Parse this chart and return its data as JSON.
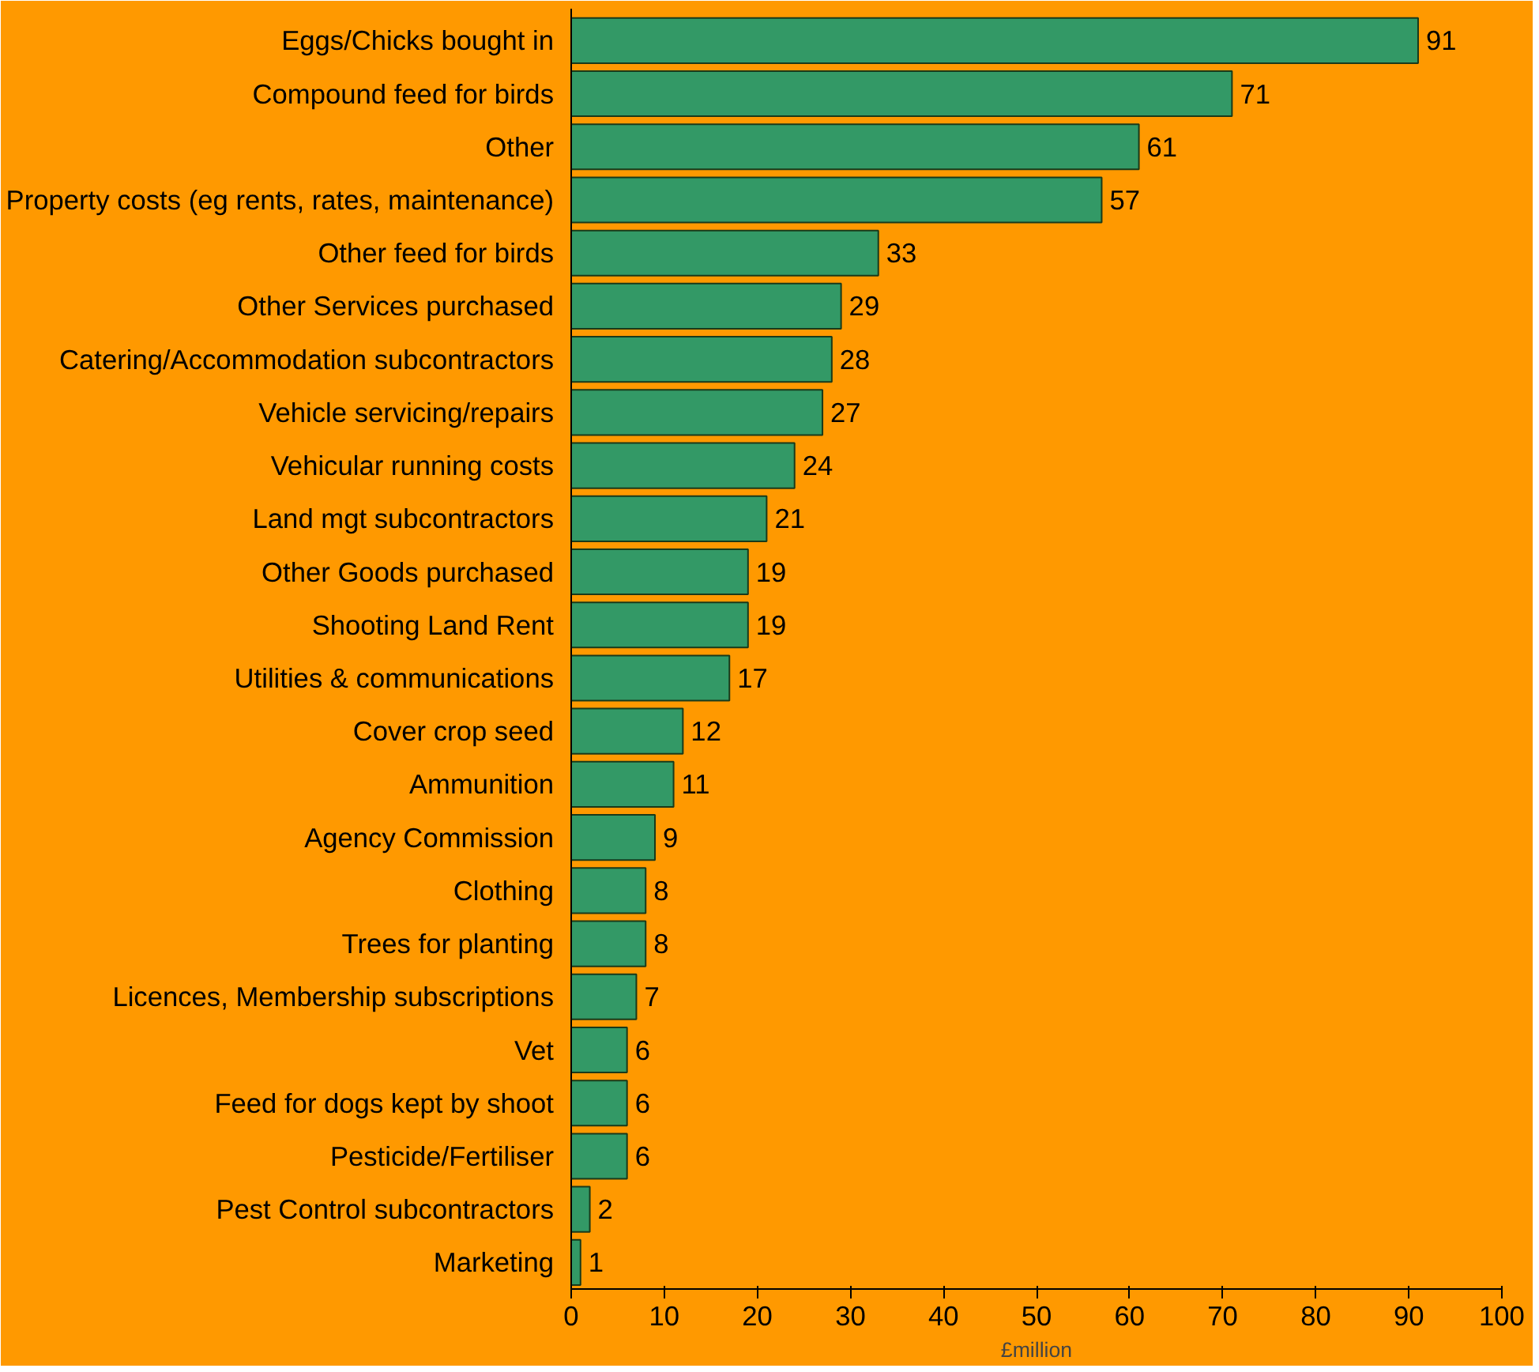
{
  "chart_data": {
    "type": "bar",
    "orientation": "horizontal",
    "xlabel": "£million",
    "categories": [
      "Eggs/Chicks bought in",
      "Compound feed for birds",
      "Other",
      "Property costs (eg rents, rates, maintenance)",
      "Other feed for birds",
      "Other Services purchased",
      "Catering/Accommodation subcontractors",
      "Vehicle servicing/repairs",
      "Vehicular running costs",
      "Land mgt subcontractors",
      "Other Goods purchased",
      "Shooting Land Rent",
      "Utilities & communications",
      "Cover crop seed",
      "Ammunition",
      "Agency Commission",
      "Clothing",
      "Trees for planting",
      "Licences, Membership subscriptions",
      "Vet",
      "Feed for dogs kept by shoot",
      "Pesticide/Fertiliser",
      "Pest Control subcontractors",
      "Marketing"
    ],
    "values": [
      91,
      71,
      61,
      57,
      33,
      29,
      28,
      27,
      24,
      21,
      19,
      19,
      17,
      12,
      11,
      9,
      8,
      8,
      7,
      6,
      6,
      6,
      2,
      1
    ],
    "color": "#339966",
    "xlim": [
      0,
      100
    ],
    "xticks": [
      0,
      10,
      20,
      30,
      40,
      50,
      60,
      70,
      80,
      90,
      100
    ],
    "grid": false,
    "data_labels": true
  }
}
